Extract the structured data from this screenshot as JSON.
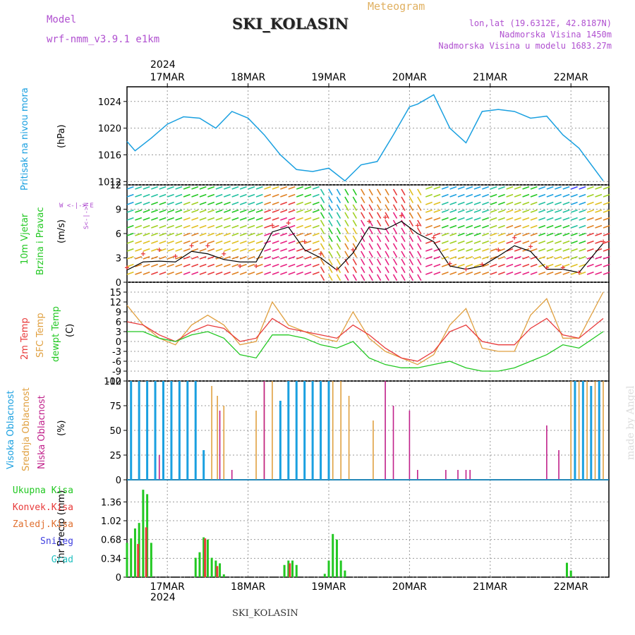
{
  "header": {
    "model_label": "Model",
    "model_name": "wrf-nmm_v3.9.1  e1km",
    "station": "SKI_KOLASIN",
    "meteogram": "Meteogram",
    "lonlat": "lon,lat (19.6312E, 42.8187N)",
    "altitude": "Nadmorska Visina 1450m",
    "model_altitude": "Nadmorska Visina u modelu 1683.27m",
    "footer_station": "SKI_KOLASIN",
    "watermark": "made by Angel",
    "year_top": "2024",
    "year_bottom": "2024"
  },
  "colors": {
    "pressure": "#1aa0e0",
    "wind_line": "#000000",
    "wind_gust": "#e83a3a",
    "temp2m": "#e83a3a",
    "sfc": "#e0a040",
    "dewpt": "#22c822",
    "high_cloud": "#1aa0e0",
    "mid_cloud": "#e0a040",
    "low_cloud": "#c0208a",
    "total_precip": "#22c822",
    "convective": "#e83a3a",
    "frozen": "#e07030",
    "snow": "#4040e0",
    "grad": "#20c0c0"
  },
  "chart_data": [
    {
      "type": "line",
      "panel": "pressure",
      "ylabel": [
        "Pritisak na nivou mora",
        "(hPa)"
      ],
      "yticks": [
        1012,
        1016,
        1020,
        1024
      ],
      "ylim": [
        1011.5,
        1026.2
      ],
      "x_day_labels": [
        "17MAR",
        "18MAR",
        "19MAR",
        "20MAR",
        "21MAR",
        "22MAR"
      ],
      "x": [
        0,
        0.1,
        0.3,
        0.5,
        0.7,
        0.9,
        1.1,
        1.3,
        1.5,
        1.7,
        1.9,
        2.1,
        2.3,
        2.5,
        2.7,
        2.9,
        3.1,
        3.3,
        3.5,
        3.6,
        3.8,
        4.0,
        4.2,
        4.4,
        4.6,
        4.8,
        5.0,
        5.2,
        5.4,
        5.6,
        5.9
      ],
      "values": [
        1018,
        1016.6,
        1018.5,
        1020.6,
        1021.7,
        1021.5,
        1020,
        1022.5,
        1021.5,
        1019,
        1016,
        1013.8,
        1013.5,
        1014,
        1012.1,
        1014.5,
        1015,
        1019,
        1023.2,
        1023.6,
        1025,
        1020,
        1017.8,
        1022.5,
        1022.8,
        1022.5,
        1021.5,
        1021.8,
        1019,
        1017,
        1012.1
      ]
    },
    {
      "type": "line",
      "panel": "wind",
      "ylabel": [
        "10m Vjetar",
        "Brzina i Pravac",
        "(m/s)"
      ],
      "compass": [
        "W",
        "<",
        "-",
        "|",
        "-",
        ">",
        "E",
        "S",
        "<",
        "-",
        "|",
        "-",
        ">",
        "N"
      ],
      "yticks": [
        0,
        3,
        6,
        9,
        12
      ],
      "ylim": [
        0,
        12
      ],
      "x": [
        0,
        0.2,
        0.4,
        0.6,
        0.8,
        1.0,
        1.2,
        1.4,
        1.6,
        1.8,
        2.0,
        2.2,
        2.4,
        2.6,
        2.8,
        3.0,
        3.2,
        3.4,
        3.6,
        3.8,
        4.0,
        4.2,
        4.4,
        4.6,
        4.8,
        5.0,
        5.2,
        5.4,
        5.6,
        5.9
      ],
      "series": [
        {
          "name": "speed",
          "values": [
            1.5,
            2.5,
            2.6,
            2.5,
            3.8,
            3.5,
            2.8,
            2.5,
            2.5,
            6.2,
            6.8,
            4.0,
            3.0,
            1.5,
            3.6,
            6.8,
            6.5,
            7.5,
            6.0,
            5.0,
            2.0,
            1.6,
            2.0,
            3.2,
            4.5,
            3.8,
            1.6,
            1.6,
            1.2,
            4.8
          ]
        },
        {
          "name": "gust",
          "values": [
            1.8,
            3.5,
            4.0,
            3.2,
            4.5,
            4.5,
            3.5,
            2.0,
            2.0,
            7.0,
            7.3,
            5.0,
            3.5,
            1.6,
            4.0,
            7.5,
            8.0,
            8.2,
            7.0,
            5.5,
            2.3,
            1.6,
            2.2,
            4.0,
            5.5,
            4.4,
            1.8,
            1.8,
            1.2,
            5.0
          ]
        }
      ]
    },
    {
      "type": "line",
      "panel": "temperature",
      "ylabel": [
        "2m Temp",
        "SFC Temp",
        "dewpt Temp",
        "(C)"
      ],
      "yticks": [
        -12,
        -9,
        -6,
        -3,
        0,
        3,
        6,
        9,
        12,
        15
      ],
      "ylim": [
        -12,
        18
      ],
      "x": [
        0,
        0.2,
        0.4,
        0.6,
        0.8,
        1.0,
        1.2,
        1.4,
        1.6,
        1.8,
        2.0,
        2.2,
        2.4,
        2.6,
        2.8,
        3.0,
        3.2,
        3.4,
        3.6,
        3.8,
        4.0,
        4.2,
        4.4,
        4.6,
        4.8,
        5.0,
        5.2,
        5.4,
        5.6,
        5.9
      ],
      "series": [
        {
          "name": "2m Temp",
          "values": [
            6,
            5,
            2,
            0,
            3,
            5,
            4,
            0,
            1,
            7,
            4,
            3,
            2,
            1,
            5,
            2,
            -2,
            -5,
            -6,
            -3,
            3,
            5,
            0,
            -1,
            -1,
            4,
            7,
            2,
            1,
            7
          ]
        },
        {
          "name": "SFC Temp",
          "values": [
            11,
            5,
            1,
            -1,
            5,
            8,
            5,
            -1,
            0,
            12,
            5,
            3,
            1,
            0,
            9,
            1,
            -3,
            -5,
            -7,
            -4,
            5,
            10,
            -2,
            -3,
            -3,
            8,
            13,
            1,
            1,
            15
          ]
        },
        {
          "name": "dewpt Temp",
          "values": [
            3,
            3,
            1,
            0,
            2,
            3,
            1,
            -4,
            -5,
            2,
            2,
            1,
            -1,
            -2,
            0,
            -5,
            -7,
            -8,
            -8,
            -7,
            -6,
            -8,
            -9,
            -9,
            -8,
            -6,
            -4,
            -1,
            -2,
            3
          ]
        }
      ]
    },
    {
      "type": "bar",
      "panel": "clouds",
      "ylabel": [
        "Visoka Oblacnost",
        "Srednja Oblacnost",
        "Niska Oblacnost",
        "(%)"
      ],
      "yticks": [
        0,
        25,
        50,
        75,
        100
      ],
      "ylim": [
        0,
        100
      ],
      "series": [
        {
          "name": "Visoka Oblacnost",
          "x": [
            0.05,
            0.15,
            0.25,
            0.35,
            0.45,
            0.55,
            0.65,
            0.75,
            0.85,
            0.95,
            1.9,
            2.0,
            2.1,
            2.2,
            2.3,
            2.4,
            2.5,
            5.55,
            5.65,
            5.75,
            5.85
          ],
          "values": [
            100,
            100,
            100,
            100,
            100,
            100,
            100,
            100,
            100,
            30,
            80,
            100,
            100,
            100,
            100,
            100,
            100,
            100,
            100,
            95,
            100
          ]
        },
        {
          "name": "Srednja Oblacnost",
          "x": [
            1.05,
            1.12,
            1.2,
            1.6,
            1.7,
            1.8,
            2.55,
            2.65,
            2.75,
            3.05,
            5.5,
            5.6,
            5.7,
            5.8,
            5.9
          ],
          "values": [
            95,
            85,
            75,
            70,
            100,
            100,
            100,
            100,
            85,
            60,
            100,
            100,
            100,
            100,
            100
          ]
        },
        {
          "name": "Niska Oblacnost",
          "x": [
            0.4,
            1.15,
            1.3,
            1.7,
            3.2,
            3.3,
            3.5,
            3.6,
            3.95,
            4.1,
            4.2,
            4.25,
            5.2,
            5.35
          ],
          "values": [
            25,
            70,
            10,
            100,
            100,
            75,
            70,
            10,
            10,
            10,
            10,
            10,
            55,
            30
          ]
        }
      ]
    },
    {
      "type": "bar",
      "panel": "precipitation",
      "ylabel": [
        "1hr Precip (mm)"
      ],
      "legend": [
        "Ukupna Kisa",
        "Konvek.Kisa",
        "Zaledj.Kisa",
        "Snijeg",
        "Grad"
      ],
      "yticks": [
        0,
        0.34,
        0.68,
        1.02,
        1.36
      ],
      "ylim": [
        0,
        1.76
      ],
      "x_day_labels": [
        "17MAR",
        "18MAR",
        "19MAR",
        "20MAR",
        "21MAR",
        "22MAR"
      ],
      "series": [
        {
          "name": "Ukupna Kisa",
          "x": [
            0.0,
            0.05,
            0.1,
            0.15,
            0.2,
            0.25,
            0.3,
            0.85,
            0.9,
            0.95,
            1.0,
            1.05,
            1.1,
            1.15,
            1.2,
            1.95,
            2.0,
            2.05,
            2.1,
            2.45,
            2.5,
            2.55,
            2.6,
            2.65,
            2.7,
            5.45,
            5.5
          ],
          "values": [
            0.62,
            0.7,
            0.88,
            0.98,
            1.58,
            1.5,
            0.62,
            0.35,
            0.45,
            0.72,
            0.68,
            0.35,
            0.3,
            0.25,
            0.05,
            0.22,
            0.3,
            0.3,
            0.22,
            0.06,
            0.3,
            0.78,
            0.68,
            0.3,
            0.12,
            0.26,
            0.12
          ]
        },
        {
          "name": "Konvek.Kisa",
          "x": [
            0.12,
            0.22,
            0.95,
            1.1,
            2.0
          ],
          "values": [
            0.6,
            0.9,
            0.7,
            0.2,
            0.25
          ]
        }
      ]
    }
  ]
}
